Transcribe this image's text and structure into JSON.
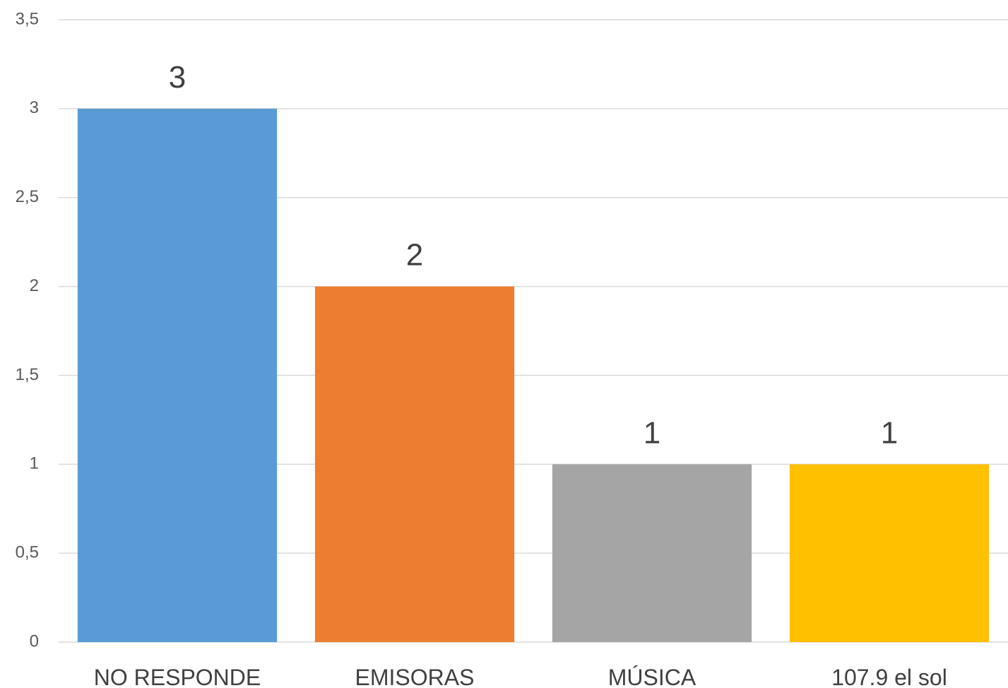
{
  "chart_data": {
    "type": "bar",
    "categories": [
      "NO RESPONDE",
      "EMISORAS",
      "MÚSICA",
      "107.9 el sol"
    ],
    "values": [
      3,
      2,
      1,
      1
    ],
    "data_labels": [
      "3",
      "2",
      "1",
      "1"
    ],
    "colors": [
      "#5b9bd5",
      "#ed7d31",
      "#a5a5a5",
      "#ffc000"
    ],
    "title": "",
    "xlabel": "",
    "ylabel": "",
    "ylim": [
      0,
      3.5
    ],
    "yticks": [
      0,
      0.5,
      1,
      1.5,
      2,
      2.5,
      3,
      3.5
    ],
    "ytick_labels": [
      "0",
      "0,5",
      "1",
      "1,5",
      "2",
      "2,5",
      "3",
      "3,5"
    ],
    "grid": true,
    "legend": "none"
  }
}
